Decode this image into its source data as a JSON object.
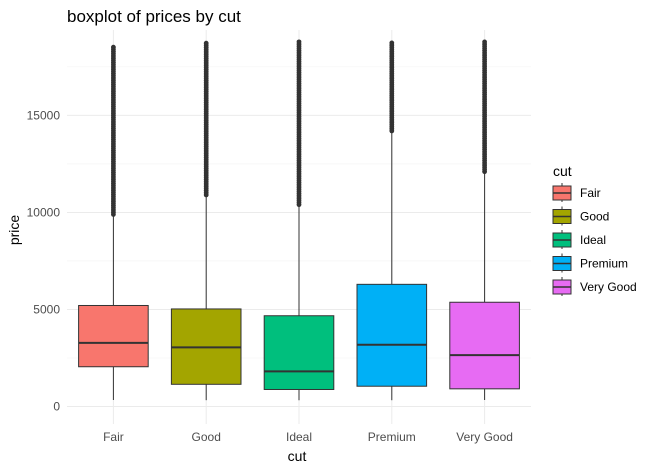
{
  "chart_data": {
    "type": "boxplot",
    "title": "boxplot of prices by cut",
    "xlabel": "cut",
    "ylabel": "price",
    "ylim": [
      -900,
      19400
    ],
    "yticks": [
      0,
      5000,
      10000,
      15000
    ],
    "ytick_labels": [
      "0",
      "5000",
      "10000",
      "15000"
    ],
    "grid": true,
    "legend": {
      "title": "cut",
      "placement": "right"
    },
    "categories": [
      "Fair",
      "Good",
      "Ideal",
      "Premium",
      "Very Good"
    ],
    "series": [
      {
        "name": "Fair",
        "color": "#F8766D",
        "min": 337,
        "q1": 2050,
        "median": 3282,
        "q3": 5206,
        "whisker_high": 9850,
        "outliers_from": 9900,
        "outliers_to": 18574
      },
      {
        "name": "Good",
        "color": "#A3A500",
        "min": 327,
        "q1": 1145,
        "median": 3050,
        "q3": 5028,
        "whisker_high": 10850,
        "outliers_from": 10900,
        "outliers_to": 18788
      },
      {
        "name": "Ideal",
        "color": "#00BF7D",
        "min": 326,
        "q1": 878,
        "median": 1810,
        "q3": 4678,
        "whisker_high": 10380,
        "outliers_from": 10400,
        "outliers_to": 18806
      },
      {
        "name": "Premium",
        "color": "#00B0F6",
        "min": 326,
        "q1": 1046,
        "median": 3185,
        "q3": 6296,
        "whisker_high": 14150,
        "outliers_from": 14200,
        "outliers_to": 18823
      },
      {
        "name": "Very Good",
        "color": "#E76BF3",
        "min": 336,
        "q1": 912,
        "median": 2648,
        "q3": 5373,
        "whisker_high": 12050,
        "outliers_from": 12100,
        "outliers_to": 18818
      }
    ]
  }
}
